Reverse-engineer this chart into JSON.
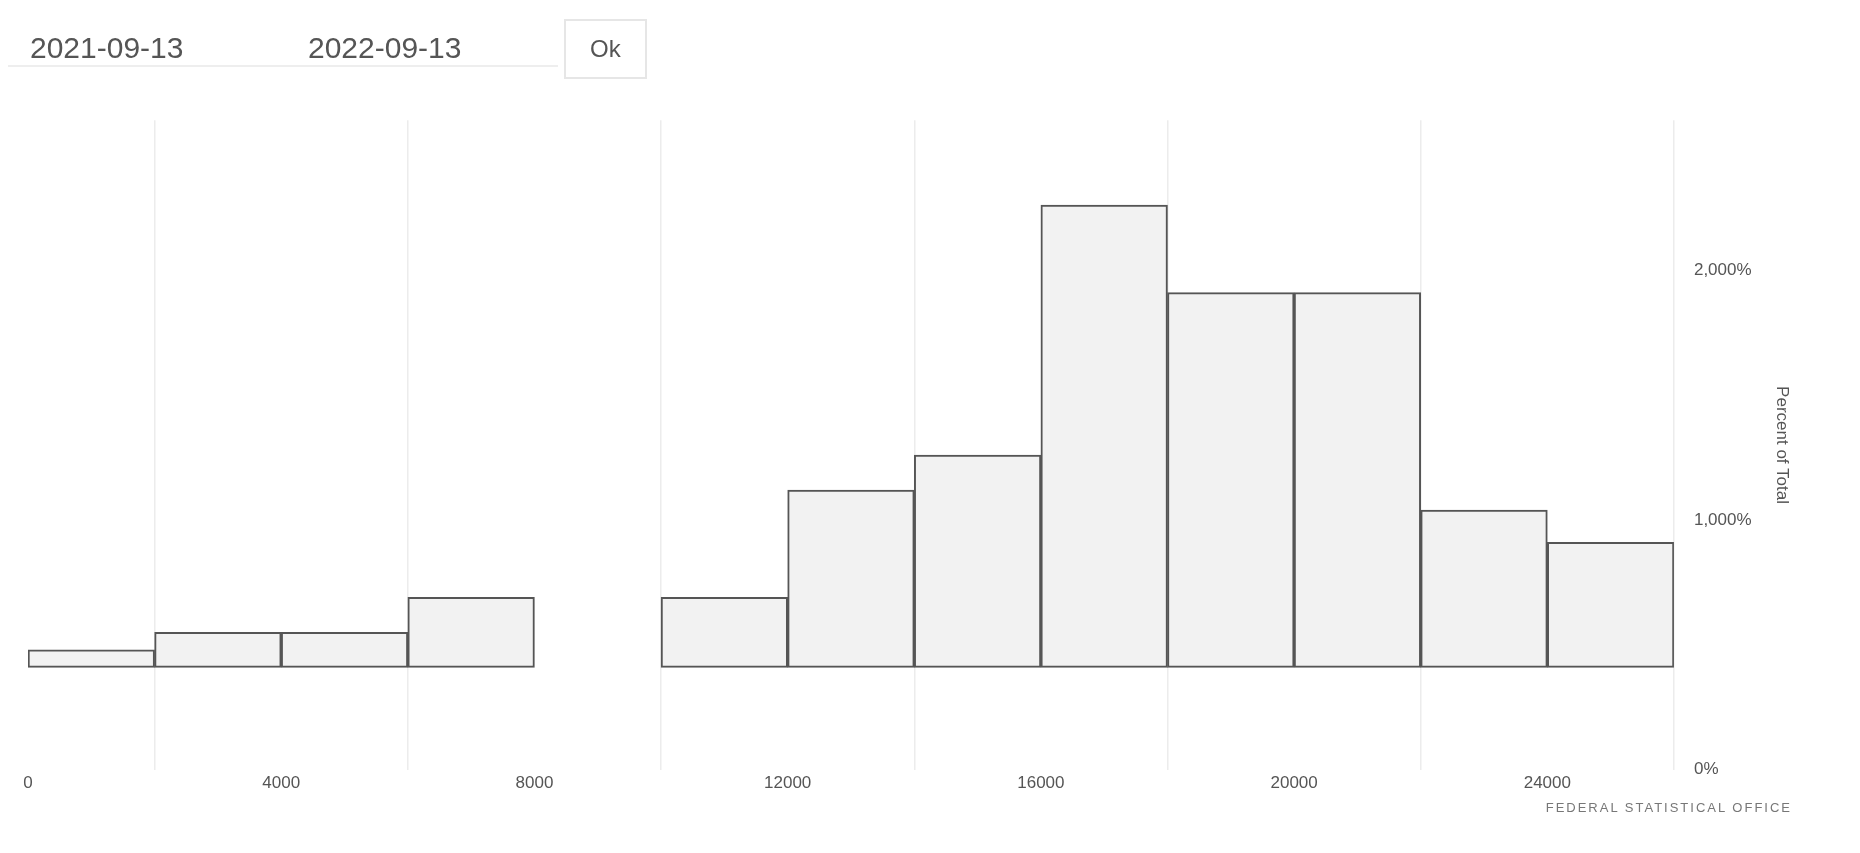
{
  "chart_data": {
    "type": "bar",
    "x": [
      1000,
      3000,
      5000,
      7000,
      11000,
      13000,
      15000,
      17000,
      19000,
      21000,
      23000,
      25000
    ],
    "values": [
      70,
      140,
      140,
      280,
      280,
      710,
      850,
      1850,
      1500,
      1500,
      630,
      500
    ],
    "base": [
      410,
      410,
      410,
      410,
      410,
      410,
      410,
      410,
      410,
      410,
      410,
      410
    ],
    "color": "#f2f2f2",
    "xlim": [
      0,
      26000
    ],
    "xticks": [
      0,
      4000,
      8000,
      12000,
      16000,
      20000,
      24000
    ],
    "ylim": [
      0,
      2600
    ],
    "yticks": [
      {
        "value": 0,
        "label": "0%"
      },
      {
        "value": 1000,
        "label": "1,000%"
      },
      {
        "value": 2000,
        "label": "2,000%"
      }
    ],
    "ylabel": "Percent of Total",
    "grid": "x",
    "legend": false,
    "annotations": [
      "2021-09-13",
      "2022-09-13",
      "Ok",
      "FEDERAL STATISTICAL OFFICE"
    ]
  }
}
